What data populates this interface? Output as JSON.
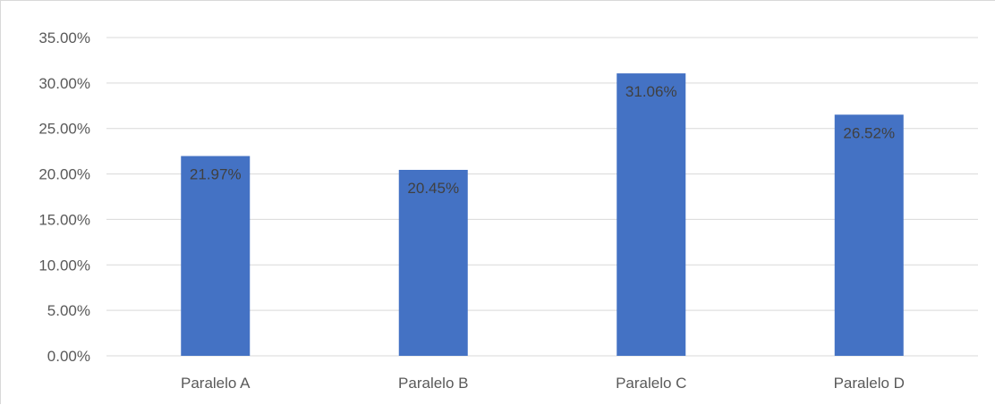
{
  "chart_data": {
    "type": "bar",
    "categories": [
      "Paralelo A",
      "Paralelo B",
      "Paralelo C",
      "Paralelo D"
    ],
    "values": [
      21.97,
      20.45,
      31.06,
      26.52
    ],
    "data_labels": [
      "21.97%",
      "20.45%",
      "31.06%",
      "26.52%"
    ],
    "title": "",
    "xlabel": "",
    "ylabel": "",
    "ylim": [
      0,
      35
    ],
    "yticks": [
      0,
      5,
      10,
      15,
      20,
      25,
      30,
      35
    ],
    "ytick_labels": [
      "0.00%",
      "5.00%",
      "10.00%",
      "15.00%",
      "20.00%",
      "25.00%",
      "30.00%",
      "35.00%"
    ],
    "grid": true,
    "legend": "none",
    "bar_color": "#4472C4",
    "grid_color": "#d9d9d9"
  }
}
